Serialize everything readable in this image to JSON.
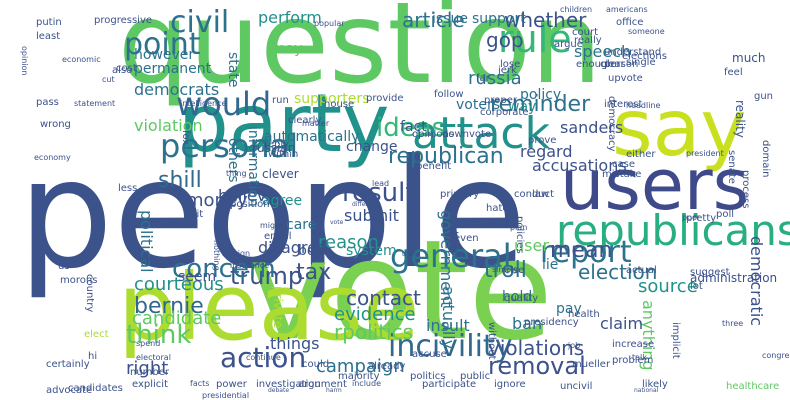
{
  "colors": {
    "background": "#ffffff",
    "palette": [
      "#3b528b",
      "#2c728e",
      "#21918c",
      "#28ae80",
      "#5ec962",
      "#7ad151",
      "#addc30",
      "#fde725",
      "#440154",
      "#482878",
      "#31688e",
      "#35b779"
    ]
  },
  "words": [
    {
      "text": "people",
      "color": "#3b528b"
    },
    {
      "text": "question",
      "color": "#5ec962"
    },
    {
      "text": "vote",
      "color": "#7ad151"
    },
    {
      "text": "please",
      "color": "#addc30"
    },
    {
      "text": "say",
      "color": "#c8e020"
    },
    {
      "text": "party",
      "color": "#21918c"
    },
    {
      "text": "users",
      "color": "#3e4a89"
    },
    {
      "text": "attack",
      "color": "#21918c"
    },
    {
      "text": "republicans",
      "color": "#28ae80"
    },
    {
      "text": "personal",
      "color": "#2c728e"
    },
    {
      "text": "would",
      "color": "#31688e"
    },
    {
      "text": "civil",
      "color": "#2c728e"
    },
    {
      "text": "point",
      "color": "#2c728e"
    },
    {
      "text": "rule",
      "color": "#35b779"
    },
    {
      "text": "general",
      "color": "#2c728e"
    },
    {
      "text": "ideas",
      "color": "#35b779"
    },
    {
      "text": "incivility",
      "color": "#31688e"
    },
    {
      "text": "action",
      "color": "#3b528b"
    },
    {
      "text": "trump",
      "color": "#3b528b"
    },
    {
      "text": "report",
      "color": "#2c728e"
    },
    {
      "text": "result",
      "color": "#3b528b"
    },
    {
      "text": "concern",
      "color": "#2c728e"
    },
    {
      "text": "removal",
      "color": "#3b528b"
    },
    {
      "text": "think",
      "color": "#5ec962"
    },
    {
      "text": "article",
      "color": "#2c728e"
    },
    {
      "text": "whether",
      "color": "#3b528b"
    },
    {
      "text": "republican",
      "color": "#2c728e"
    },
    {
      "text": "reminder",
      "color": "#2c728e"
    },
    {
      "text": "troll",
      "color": "#2c728e"
    },
    {
      "text": "bernie",
      "color": "#31688e"
    },
    {
      "text": "speech",
      "color": "#2c728e"
    },
    {
      "text": "gop",
      "color": "#3b528b"
    },
    {
      "text": "russia",
      "color": "#2c728e"
    },
    {
      "text": "perform",
      "color": "#21918c"
    },
    {
      "text": "support",
      "color": "#2c728e"
    },
    {
      "text": "issue",
      "color": "#2c728e"
    },
    {
      "text": "accusations",
      "color": "#3b528b"
    },
    {
      "text": "shill",
      "color": "#31688e"
    },
    {
      "text": "campaign",
      "color": "#2c728e"
    },
    {
      "text": "contact",
      "color": "#3b528b"
    },
    {
      "text": "rpolitics",
      "color": "#5ec962"
    },
    {
      "text": "violations",
      "color": "#3b528b"
    },
    {
      "text": "mean",
      "color": "#3b528b"
    },
    {
      "text": "election",
      "color": "#2c728e"
    },
    {
      "text": "source",
      "color": "#21918c"
    },
    {
      "text": "tax",
      "color": "#3b528b"
    },
    {
      "text": "evidence",
      "color": "#21918c"
    },
    {
      "text": "courteous",
      "color": "#21918c"
    },
    {
      "text": "candidate",
      "color": "#5ec962"
    },
    {
      "text": "things",
      "color": "#3b528b"
    },
    {
      "text": "right",
      "color": "#3b528b"
    },
    {
      "text": "reason",
      "color": "#21918c"
    },
    {
      "text": "submit",
      "color": "#3b528b"
    },
    {
      "text": "political",
      "color": "#2c728e"
    },
    {
      "text": "actually",
      "color": "#2c728e"
    },
    {
      "text": "government",
      "color": "#2c728e"
    },
    {
      "text": "democratic",
      "color": "#3b528b"
    },
    {
      "text": "anything",
      "color": "#5ec962"
    },
    {
      "text": "democrats",
      "color": "#2c728e"
    },
    {
      "text": "however",
      "color": "#2c728e"
    },
    {
      "text": "permanent",
      "color": "#2c728e"
    },
    {
      "text": "violation",
      "color": "#5ec962"
    },
    {
      "text": "money",
      "color": "#3b528b"
    },
    {
      "text": "believe",
      "color": "#3b528b"
    },
    {
      "text": "agree",
      "color": "#21918c"
    },
    {
      "text": "disagree",
      "color": "#3b528b"
    },
    {
      "text": "bot",
      "color": "#3b528b"
    },
    {
      "text": "care",
      "color": "#2c728e"
    },
    {
      "text": "insult",
      "color": "#2c728e"
    },
    {
      "text": "user",
      "color": "#5ec962"
    },
    {
      "text": "lie",
      "color": "#2c728e"
    },
    {
      "text": "hold",
      "color": "#2c728e"
    },
    {
      "text": "pay",
      "color": "#2c728e"
    },
    {
      "text": "claim",
      "color": "#3b528b"
    },
    {
      "text": "ban",
      "color": "#2c728e"
    },
    {
      "text": "seem",
      "color": "#3b528b"
    },
    {
      "text": "automatically",
      "color": "#2c728e"
    },
    {
      "text": "regard",
      "color": "#3b528b"
    },
    {
      "text": "sanders",
      "color": "#3b528b"
    },
    {
      "text": "supporters",
      "color": "#addc30"
    },
    {
      "text": "information",
      "color": "#2c728e"
    },
    {
      "text": "others",
      "color": "#2c728e"
    },
    {
      "text": "state",
      "color": "#2c728e"
    },
    {
      "text": "voters",
      "color": "#2c728e"
    },
    {
      "text": "policy",
      "color": "#2c728e"
    },
    {
      "text": "fact",
      "color": "#3b528b"
    },
    {
      "text": "change",
      "color": "#3b528b"
    },
    {
      "text": "system",
      "color": "#21918c"
    },
    {
      "text": "way",
      "color": "#21918c"
    },
    {
      "text": "may",
      "color": "#5ec962"
    },
    {
      "text": "uncivil",
      "color": "#3b528b"
    },
    {
      "text": "public",
      "color": "#3b528b"
    },
    {
      "text": "politics",
      "color": "#3b528b"
    },
    {
      "text": "majority",
      "color": "#3b528b"
    },
    {
      "text": "healthcare",
      "color": "#5ec962"
    },
    {
      "text": "investigation",
      "color": "#3b528b"
    },
    {
      "text": "power",
      "color": "#3b528b"
    },
    {
      "text": "argument",
      "color": "#3b528b"
    },
    {
      "text": "participate",
      "color": "#3b528b"
    },
    {
      "text": "ignore",
      "color": "#3b528b"
    },
    {
      "text": "facts",
      "color": "#3b528b"
    },
    {
      "text": "explicit",
      "color": "#3b528b"
    },
    {
      "text": "number",
      "color": "#3b528b"
    },
    {
      "text": "candidates",
      "color": "#3b528b"
    },
    {
      "text": "country",
      "color": "#3b528b"
    },
    {
      "text": "us",
      "color": "#3b528b"
    },
    {
      "text": "morons",
      "color": "#3b528b"
    },
    {
      "text": "elect",
      "color": "#addc30"
    },
    {
      "text": "hi",
      "color": "#3b528b"
    },
    {
      "text": "advocate",
      "color": "#3b528b"
    },
    {
      "text": "certainly",
      "color": "#3b528b"
    },
    {
      "text": "already",
      "color": "#3b528b"
    },
    {
      "text": "accuse",
      "color": "#3b528b"
    },
    {
      "text": "could",
      "color": "#3b528b"
    },
    {
      "text": "include",
      "color": "#3b528b"
    },
    {
      "text": "presidential",
      "color": "#3b528b"
    },
    {
      "text": "likely",
      "color": "#3b528b"
    },
    {
      "text": "mueller",
      "color": "#3b528b"
    },
    {
      "text": "increase",
      "color": "#3b528b"
    },
    {
      "text": "problem",
      "color": "#3b528b"
    },
    {
      "text": "administration",
      "color": "#3b528b"
    },
    {
      "text": "quality",
      "color": "#3b528b"
    },
    {
      "text": "presidency",
      "color": "#3b528b"
    },
    {
      "text": "health",
      "color": "#3b528b"
    },
    {
      "text": "federal",
      "color": "#3b528b"
    },
    {
      "text": "conduct",
      "color": "#3b528b"
    },
    {
      "text": "law",
      "color": "#3b528b"
    },
    {
      "text": "plan",
      "color": "#3b528b"
    },
    {
      "text": "hate",
      "color": "#3b528b"
    },
    {
      "text": "policies",
      "color": "#3b528b"
    },
    {
      "text": "even",
      "color": "#3b528b"
    },
    {
      "text": "email",
      "color": "#3b528b"
    },
    {
      "text": "insurance",
      "color": "#3b528b"
    },
    {
      "text": "foreign",
      "color": "#3b528b"
    },
    {
      "text": "private",
      "color": "#addc30"
    },
    {
      "text": "might",
      "color": "#3b528b"
    },
    {
      "text": "nothing",
      "color": "#3b528b"
    },
    {
      "text": "position",
      "color": "#3b528b"
    },
    {
      "text": "bait",
      "color": "#3b528b"
    },
    {
      "text": "clever",
      "color": "#3b528b"
    },
    {
      "text": "russian",
      "color": "#3b528b"
    },
    {
      "text": "reply",
      "color": "#3b528b"
    },
    {
      "text": "within",
      "color": "#3b528b"
    },
    {
      "text": "fox",
      "color": "#3b528b"
    },
    {
      "text": "clearly",
      "color": "#3b528b"
    },
    {
      "text": "run",
      "color": "#3b528b"
    },
    {
      "text": "house",
      "color": "#3b528b"
    },
    {
      "text": "provide",
      "color": "#3b528b"
    },
    {
      "text": "follow",
      "color": "#3b528b"
    },
    {
      "text": "opinions",
      "color": "#3b528b"
    },
    {
      "text": "downvote",
      "color": "#3b528b"
    },
    {
      "text": "prove",
      "color": "#3b528b"
    },
    {
      "text": "interest",
      "color": "#3b528b"
    },
    {
      "text": "case",
      "color": "#3b528b"
    },
    {
      "text": "mistake",
      "color": "#3b528b"
    },
    {
      "text": "either",
      "color": "#3b528b"
    },
    {
      "text": "upvote",
      "color": "#3b528b"
    },
    {
      "text": "democracy",
      "color": "#3b528b"
    },
    {
      "text": "elections",
      "color": "#3b528b"
    },
    {
      "text": "person",
      "color": "#3b528b"
    },
    {
      "text": "single",
      "color": "#3b528b"
    },
    {
      "text": "clear",
      "color": "#3b528b"
    },
    {
      "text": "argue",
      "color": "#3b528b"
    },
    {
      "text": "really",
      "color": "#3b528b"
    },
    {
      "text": "court",
      "color": "#3b528b"
    },
    {
      "text": "understand",
      "color": "#3b528b"
    },
    {
      "text": "office",
      "color": "#3b528b"
    },
    {
      "text": "enough",
      "color": "#3b528b"
    },
    {
      "text": "lose",
      "color": "#3b528b"
    },
    {
      "text": "jerk",
      "color": "#3b528b"
    },
    {
      "text": "far",
      "color": "#3b528b"
    },
    {
      "text": "proper",
      "color": "#3b528b"
    },
    {
      "text": "corporate",
      "color": "#3b528b"
    },
    {
      "text": "feel",
      "color": "#3b528b"
    },
    {
      "text": "much",
      "color": "#3b528b"
    },
    {
      "text": "gun",
      "color": "#3b528b"
    },
    {
      "text": "putin",
      "color": "#3b528b"
    },
    {
      "text": "least",
      "color": "#3b528b"
    },
    {
      "text": "progressive",
      "color": "#3b528b"
    },
    {
      "text": "children",
      "color": "#3b528b"
    },
    {
      "text": "americans",
      "color": "#3b528b"
    },
    {
      "text": "economic",
      "color": "#3b528b"
    },
    {
      "text": "cost",
      "color": "#3b528b"
    },
    {
      "text": "also",
      "color": "#3b528b"
    },
    {
      "text": "cut",
      "color": "#3b528b"
    },
    {
      "text": "statement",
      "color": "#3b528b"
    },
    {
      "text": "pass",
      "color": "#3b528b"
    },
    {
      "text": "wrong",
      "color": "#3b528b"
    },
    {
      "text": "economy",
      "color": "#3b528b"
    },
    {
      "text": "less",
      "color": "#3b528b"
    },
    {
      "text": "poll",
      "color": "#3b528b"
    },
    {
      "text": "pretty",
      "color": "#3b528b"
    },
    {
      "text": "senate",
      "color": "#3b528b"
    },
    {
      "text": "benefit",
      "color": "#3b528b"
    },
    {
      "text": "primary",
      "color": "#3b528b"
    },
    {
      "text": "congress",
      "color": "#3b528b"
    },
    {
      "text": "implicit",
      "color": "#3b528b"
    },
    {
      "text": "without",
      "color": "#3b528b"
    },
    {
      "text": "lot",
      "color": "#3b528b"
    },
    {
      "text": "else",
      "color": "#3b528b"
    },
    {
      "text": "actual",
      "color": "#3b528b"
    },
    {
      "text": "simply",
      "color": "#3b528b"
    },
    {
      "text": "debate",
      "color": "#3b528b"
    },
    {
      "text": "harm",
      "color": "#3b528b"
    },
    {
      "text": "electoral",
      "color": "#3b528b"
    },
    {
      "text": "spend",
      "color": "#3b528b"
    },
    {
      "text": "continue",
      "color": "#3b528b"
    },
    {
      "text": "national",
      "color": "#3b528b"
    },
    {
      "text": "domain",
      "color": "#3b528b"
    },
    {
      "text": "president",
      "color": "#3b528b"
    },
    {
      "text": "process",
      "color": "#3b528b"
    },
    {
      "text": "opinion",
      "color": "#3b528b"
    },
    {
      "text": "reality",
      "color": "#3b528b"
    },
    {
      "text": "differ",
      "color": "#3b528b"
    },
    {
      "text": "vote",
      "color": "#3b528b"
    },
    {
      "text": "company",
      "color": "#3b528b"
    },
    {
      "text": "lead",
      "color": "#3b528b"
    },
    {
      "text": "intelligence",
      "color": "#3b528b"
    },
    {
      "text": "popular",
      "color": "#3b528b"
    },
    {
      "text": "matter",
      "color": "#3b528b"
    },
    {
      "text": "thing",
      "color": "#3b528b"
    },
    {
      "text": "truth",
      "color": "#3b528b"
    },
    {
      "text": "poor",
      "color": "#3b528b"
    },
    {
      "text": "headline",
      "color": "#3b528b"
    },
    {
      "text": "suggest",
      "color": "#3b528b"
    },
    {
      "text": "someone",
      "color": "#3b528b"
    },
    {
      "text": "three",
      "color": "#3b528b"
    },
    {
      "text": "job",
      "color": "#3b528b"
    },
    {
      "text": "talk",
      "color": "#3b528b"
    },
    {
      "text": "income",
      "color": "#3b528b"
    },
    {
      "text": "blame",
      "color": "#3b528b"
    }
  ]
}
